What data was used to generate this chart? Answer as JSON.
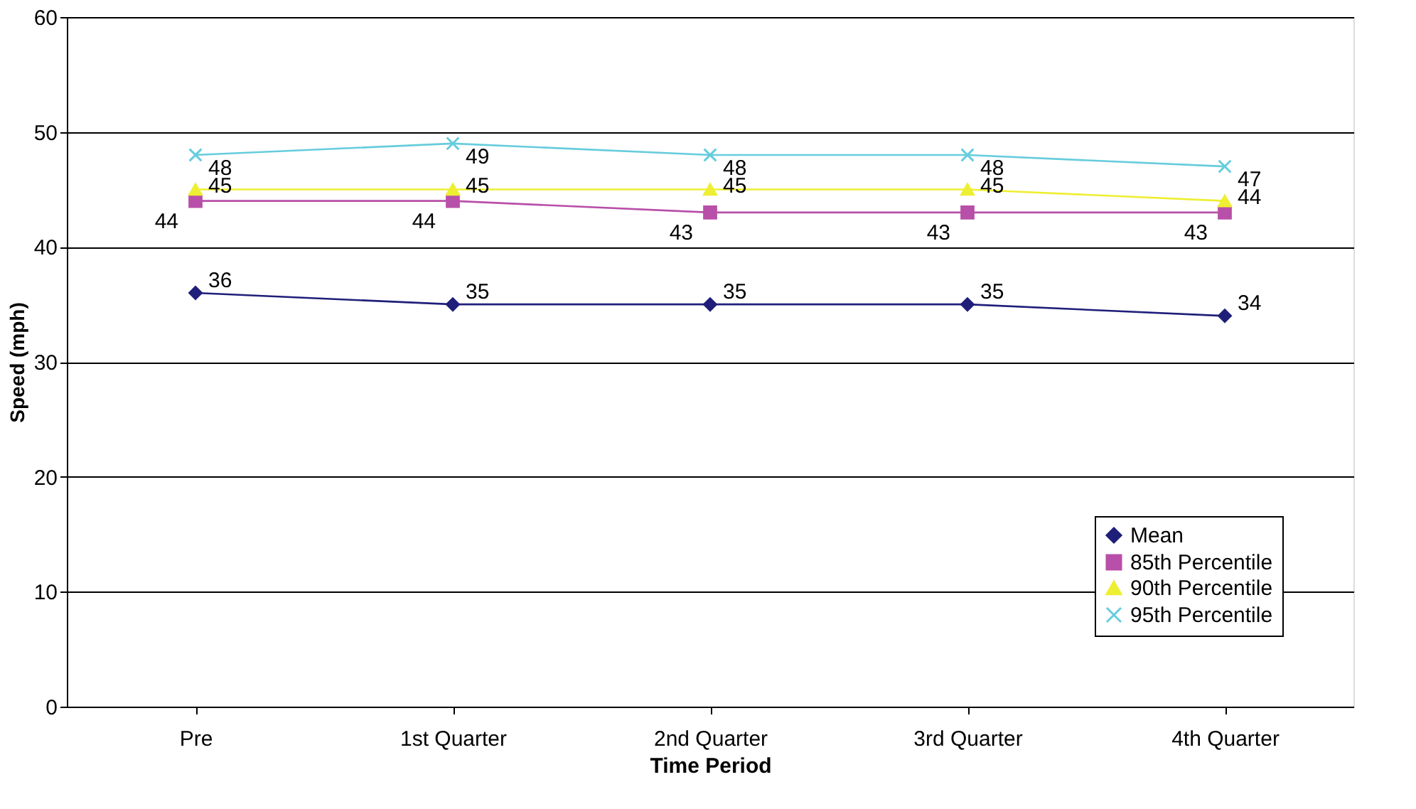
{
  "chart_data": {
    "type": "line",
    "xlabel": "Time Period",
    "ylabel": "Speed (mph)",
    "categories": [
      "Pre",
      "1st Quarter",
      "2nd Quarter",
      "3rd Quarter",
      "4th Quarter"
    ],
    "series": [
      {
        "name": "Mean",
        "color": "#1f1f7a",
        "marker": "diamond",
        "values": [
          36,
          35,
          35,
          35,
          34
        ]
      },
      {
        "name": "85th Percentile",
        "color": "#b84fa8",
        "marker": "square",
        "values": [
          44,
          44,
          43,
          43,
          43
        ]
      },
      {
        "name": " 90th Percentile",
        "color": "#eeee33",
        "marker": "triangle",
        "values": [
          45,
          45,
          45,
          45,
          44
        ]
      },
      {
        "name": "95th Percentile",
        "color": "#66ccdd",
        "marker": "cross",
        "values": [
          48,
          49,
          48,
          48,
          47
        ]
      }
    ],
    "ylim": [
      0,
      60
    ],
    "yticks": [
      0,
      10,
      20,
      30,
      40,
      50,
      60
    ],
    "grid": "y",
    "legend": "bottom right",
    "data_labels": true,
    "line_style": "solid"
  }
}
